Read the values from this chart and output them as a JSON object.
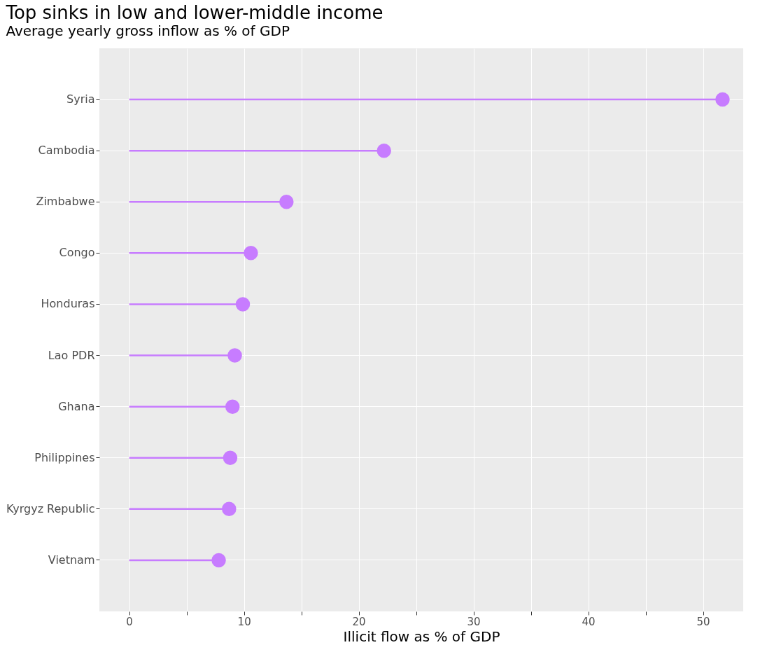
{
  "chart_data": {
    "type": "lollipop",
    "title": "Top sinks in low and lower-middle income",
    "subtitle": "Average yearly gross inflow as % of GDP",
    "xlabel": "Illicit flow as % of GDP",
    "orientation": "horizontal",
    "categories": [
      "Syria",
      "Cambodia",
      "Zimbabwe",
      "Congo",
      "Honduras",
      "Lao PDR",
      "Ghana",
      "Philippines",
      "Kyrgyz Republic",
      "Vietnam"
    ],
    "values": [
      51.7,
      22.2,
      13.7,
      10.6,
      9.9,
      9.2,
      9.0,
      8.8,
      8.7,
      7.8
    ],
    "color": "#c77cff",
    "xlim": [
      -2.6,
      53.5
    ],
    "xticks": [
      0,
      {
        "value": 5,
        "label": null
      },
      10,
      {
        "value": 15,
        "label": null
      },
      20,
      {
        "value": 25,
        "label": null
      },
      30,
      {
        "value": 35,
        "label": null
      },
      40,
      {
        "value": 45,
        "label": null
      },
      50
    ],
    "grid": true,
    "marker": "circle"
  }
}
